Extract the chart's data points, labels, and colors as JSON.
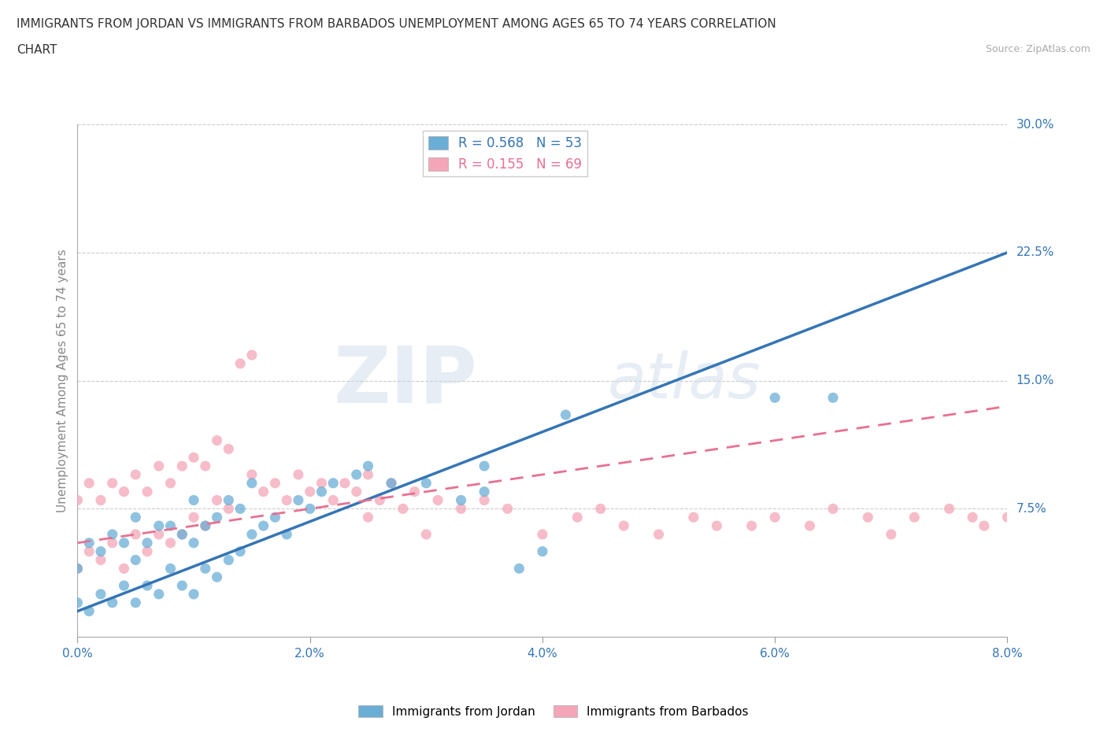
{
  "title_line1": "IMMIGRANTS FROM JORDAN VS IMMIGRANTS FROM BARBADOS UNEMPLOYMENT AMONG AGES 65 TO 74 YEARS CORRELATION",
  "title_line2": "CHART",
  "source": "Source: ZipAtlas.com",
  "ylabel": "Unemployment Among Ages 65 to 74 years",
  "xlim": [
    0.0,
    0.08
  ],
  "ylim": [
    0.0,
    0.3
  ],
  "xticks": [
    0.0,
    0.02,
    0.04,
    0.06,
    0.08
  ],
  "xtick_labels": [
    "0.0%",
    "2.0%",
    "4.0%",
    "6.0%",
    "8.0%"
  ],
  "yticks": [
    0.0,
    0.075,
    0.15,
    0.225,
    0.3
  ],
  "ytick_labels": [
    "0.0%",
    "7.5%",
    "15.0%",
    "22.5%",
    "30.0%"
  ],
  "jordan_color": "#6aaed6",
  "barbados_color": "#f4a6b8",
  "jordan_R": 0.568,
  "jordan_N": 53,
  "barbados_R": 0.155,
  "barbados_N": 69,
  "jordan_scatter_x": [
    0.0,
    0.0,
    0.001,
    0.001,
    0.002,
    0.002,
    0.003,
    0.003,
    0.004,
    0.004,
    0.005,
    0.005,
    0.005,
    0.006,
    0.006,
    0.007,
    0.007,
    0.008,
    0.008,
    0.009,
    0.009,
    0.01,
    0.01,
    0.01,
    0.011,
    0.011,
    0.012,
    0.012,
    0.013,
    0.013,
    0.014,
    0.014,
    0.015,
    0.015,
    0.016,
    0.017,
    0.018,
    0.019,
    0.02,
    0.021,
    0.022,
    0.024,
    0.025,
    0.027,
    0.03,
    0.033,
    0.035,
    0.035,
    0.038,
    0.04,
    0.042,
    0.06,
    0.065
  ],
  "jordan_scatter_y": [
    0.02,
    0.04,
    0.015,
    0.055,
    0.025,
    0.05,
    0.02,
    0.06,
    0.03,
    0.055,
    0.02,
    0.045,
    0.07,
    0.03,
    0.055,
    0.025,
    0.065,
    0.04,
    0.065,
    0.03,
    0.06,
    0.025,
    0.055,
    0.08,
    0.04,
    0.065,
    0.035,
    0.07,
    0.045,
    0.08,
    0.05,
    0.075,
    0.06,
    0.09,
    0.065,
    0.07,
    0.06,
    0.08,
    0.075,
    0.085,
    0.09,
    0.095,
    0.1,
    0.09,
    0.09,
    0.08,
    0.1,
    0.085,
    0.04,
    0.05,
    0.13,
    0.14,
    0.14
  ],
  "barbados_scatter_x": [
    0.0,
    0.0,
    0.001,
    0.001,
    0.002,
    0.002,
    0.003,
    0.003,
    0.004,
    0.004,
    0.005,
    0.005,
    0.006,
    0.006,
    0.007,
    0.007,
    0.008,
    0.008,
    0.009,
    0.009,
    0.01,
    0.01,
    0.011,
    0.011,
    0.012,
    0.012,
    0.013,
    0.013,
    0.014,
    0.015,
    0.015,
    0.016,
    0.017,
    0.018,
    0.019,
    0.02,
    0.021,
    0.022,
    0.023,
    0.024,
    0.025,
    0.025,
    0.026,
    0.027,
    0.028,
    0.029,
    0.03,
    0.031,
    0.033,
    0.035,
    0.037,
    0.04,
    0.043,
    0.045,
    0.047,
    0.05,
    0.053,
    0.055,
    0.058,
    0.06,
    0.063,
    0.065,
    0.068,
    0.07,
    0.072,
    0.075,
    0.077,
    0.078,
    0.08
  ],
  "barbados_scatter_y": [
    0.04,
    0.08,
    0.05,
    0.09,
    0.045,
    0.08,
    0.055,
    0.09,
    0.04,
    0.085,
    0.06,
    0.095,
    0.05,
    0.085,
    0.06,
    0.1,
    0.055,
    0.09,
    0.06,
    0.1,
    0.07,
    0.105,
    0.065,
    0.1,
    0.08,
    0.115,
    0.075,
    0.11,
    0.16,
    0.095,
    0.165,
    0.085,
    0.09,
    0.08,
    0.095,
    0.085,
    0.09,
    0.08,
    0.09,
    0.085,
    0.07,
    0.095,
    0.08,
    0.09,
    0.075,
    0.085,
    0.06,
    0.08,
    0.075,
    0.08,
    0.075,
    0.06,
    0.07,
    0.075,
    0.065,
    0.06,
    0.07,
    0.065,
    0.065,
    0.07,
    0.065,
    0.075,
    0.07,
    0.06,
    0.07,
    0.075,
    0.07,
    0.065,
    0.07
  ],
  "jordan_trend_x": [
    0.0,
    0.08
  ],
  "jordan_trend_y": [
    0.015,
    0.225
  ],
  "barbados_trend_x": [
    0.0,
    0.08
  ],
  "barbados_trend_y": [
    0.055,
    0.135
  ],
  "watermark_zip": "ZIP",
  "watermark_atlas": "atlas",
  "background_color": "#ffffff",
  "grid_color": "#cccccc",
  "jordan_line_color": "#3575b5",
  "barbados_line_color": "#e87090",
  "axis_label_color": "#3575b5",
  "ylabel_color": "#888888",
  "title_color": "#333333"
}
